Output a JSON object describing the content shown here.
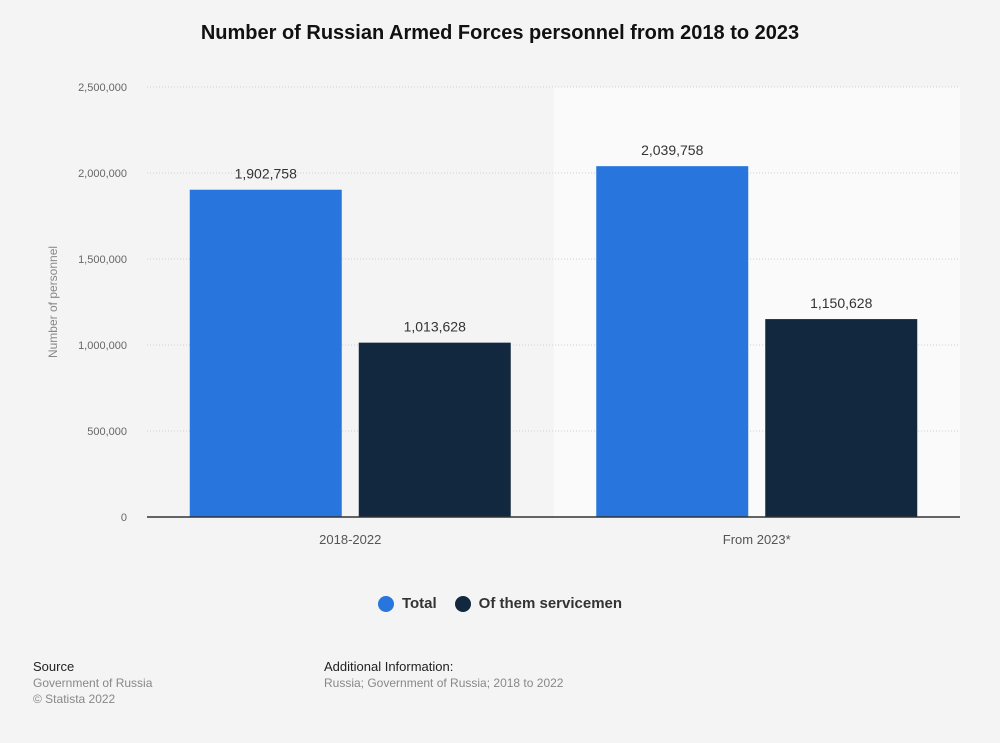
{
  "title": "Number of Russian Armed Forces personnel from 2018 to 2023",
  "chart_data": {
    "type": "bar",
    "categories": [
      "2018-2022",
      "From 2023*"
    ],
    "series": [
      {
        "name": "Total",
        "values": [
          1902758,
          2039758
        ],
        "color": "#2876dd"
      },
      {
        "name": "Of them servicemen",
        "values": [
          1013628,
          1150628
        ],
        "color": "#12283f"
      }
    ],
    "data_labels": [
      [
        "1,902,758",
        "2,039,758"
      ],
      [
        "1,013,628",
        "1,150,628"
      ]
    ],
    "ylabel": "Number of personnel",
    "ylim": [
      0,
      2500000
    ],
    "yticks": [
      0,
      500000,
      1000000,
      1500000,
      2000000,
      2500000
    ],
    "ytick_labels": [
      "0",
      "500,000",
      "1,000,000",
      "1,500,000",
      "2,000,000",
      "2,500,000"
    ],
    "grid": true,
    "legend_position": "bottom"
  },
  "footer": {
    "source_heading": "Source",
    "source_lines": [
      "Government of Russia",
      "© Statista 2022"
    ],
    "info_heading": "Additional Information:",
    "info_text": "Russia; Government of Russia; 2018 to 2022"
  }
}
